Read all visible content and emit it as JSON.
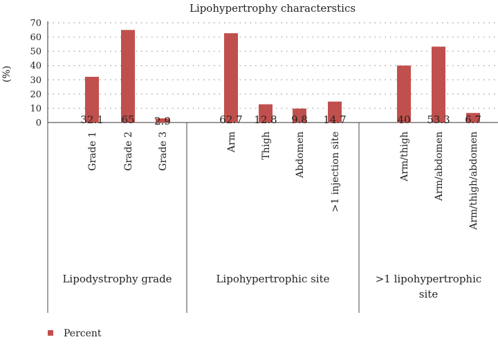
{
  "chart_data": {
    "type": "bar",
    "title": "Lipohypertrophy characterstics",
    "ylabel": "(%)",
    "ylim": [
      0,
      70
    ],
    "yticks": [
      0,
      10,
      20,
      30,
      40,
      50,
      60,
      70
    ],
    "grid": true,
    "legend_position": "bottom-left",
    "series": [
      {
        "name": "Percent",
        "color": "#c0504d"
      }
    ],
    "groups": [
      {
        "label": "Lipodystrophy grade",
        "categories": [
          "Grade 1",
          "Grade 2",
          "Grade 3"
        ],
        "values": [
          32.1,
          65,
          2.9
        ],
        "value_labels": [
          "32.1",
          "65",
          "2.9"
        ]
      },
      {
        "label": "Lipohypertrophic site",
        "categories": [
          "Arm",
          "Thigh",
          "Abdomen",
          ">1 injection site"
        ],
        "values": [
          62.7,
          12.8,
          9.8,
          14.7
        ],
        "value_labels": [
          "62.7",
          "12.8",
          "9.8",
          "14.7"
        ]
      },
      {
        "label": ">1 lipohypertrophic site",
        "label_lines": [
          ">1 lipohypertrophic",
          "site"
        ],
        "categories": [
          "Arm/thigh",
          "Arm/abdomen",
          "Arm/thigh/abdomen"
        ],
        "values": [
          40,
          53.3,
          6.7
        ],
        "value_labels": [
          "40",
          "53.3",
          "6.7"
        ]
      }
    ]
  }
}
